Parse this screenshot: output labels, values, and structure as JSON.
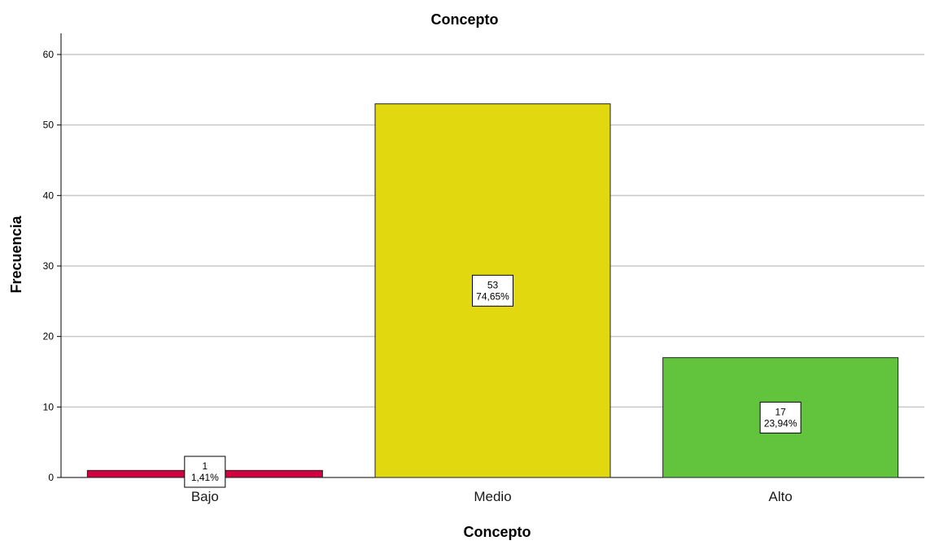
{
  "chart_data": {
    "type": "bar",
    "title": "Concepto",
    "xlabel": "Concepto",
    "ylabel": "Frecuencia",
    "categories": [
      "Bajo",
      "Medio",
      "Alto"
    ],
    "values": [
      1,
      53,
      17
    ],
    "data_labels": [
      {
        "count": "1",
        "percent": "1,41%"
      },
      {
        "count": "53",
        "percent": "74,65%"
      },
      {
        "count": "17",
        "percent": "23,94%"
      }
    ],
    "colors": [
      "#d1003f",
      "#e1d80f",
      "#62c33d"
    ],
    "ylim": [
      0,
      63
    ],
    "yticks": [
      0,
      10,
      20,
      30,
      40,
      50,
      60
    ],
    "grid": true,
    "gridColor": "#c8c8c8"
  }
}
